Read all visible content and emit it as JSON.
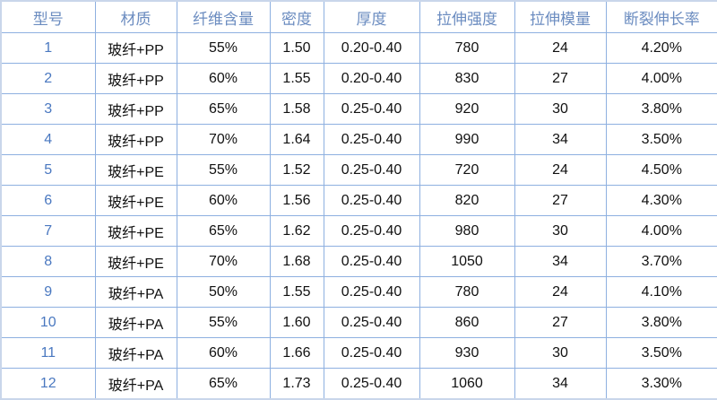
{
  "headers": [
    "型号",
    "材质",
    "纤维含量",
    "密度",
    "厚度",
    "拉伸强度",
    "拉伸模量",
    "断裂伸长率"
  ],
  "rows": [
    [
      "1",
      "玻纤+PP",
      "55%",
      "1.50",
      "0.20-0.40",
      "780",
      "24",
      "4.20%"
    ],
    [
      "2",
      "玻纤+PP",
      "60%",
      "1.55",
      "0.20-0.40",
      "830",
      "27",
      "4.00%"
    ],
    [
      "3",
      "玻纤+PP",
      "65%",
      "1.58",
      "0.25-0.40",
      "920",
      "30",
      "3.80%"
    ],
    [
      "4",
      "玻纤+PP",
      "70%",
      "1.64",
      "0.25-0.40",
      "990",
      "34",
      "3.50%"
    ],
    [
      "5",
      "玻纤+PE",
      "55%",
      "1.52",
      "0.25-0.40",
      "720",
      "24",
      "4.50%"
    ],
    [
      "6",
      "玻纤+PE",
      "60%",
      "1.56",
      "0.25-0.40",
      "820",
      "27",
      "4.30%"
    ],
    [
      "7",
      "玻纤+PE",
      "65%",
      "1.62",
      "0.25-0.40",
      "980",
      "30",
      "4.00%"
    ],
    [
      "8",
      "玻纤+PE",
      "70%",
      "1.68",
      "0.25-0.40",
      "1050",
      "34",
      "3.70%"
    ],
    [
      "9",
      "玻纤+PA",
      "50%",
      "1.55",
      "0.25-0.40",
      "780",
      "24",
      "4.10%"
    ],
    [
      "10",
      "玻纤+PA",
      "55%",
      "1.60",
      "0.25-0.40",
      "860",
      "27",
      "3.80%"
    ],
    [
      "11",
      "玻纤+PA",
      "60%",
      "1.66",
      "0.25-0.40",
      "930",
      "30",
      "3.50%"
    ],
    [
      "12",
      "玻纤+PA",
      "65%",
      "1.73",
      "0.25-0.40",
      "1060",
      "34",
      "3.30%"
    ]
  ]
}
